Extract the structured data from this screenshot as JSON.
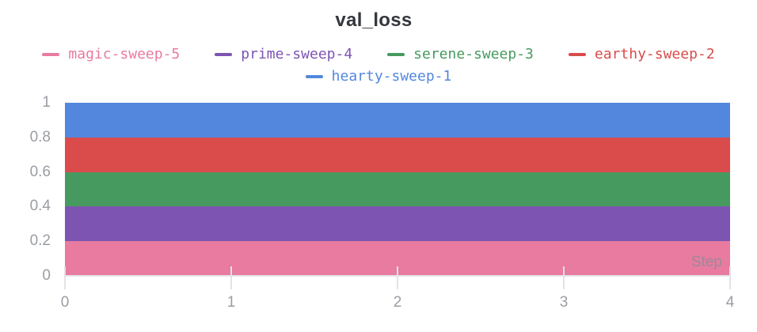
{
  "chart_data": {
    "type": "area",
    "variant": "stacked-constant-bands",
    "title": "val_loss",
    "xlabel": "Step",
    "ylabel": "",
    "xlim": [
      0,
      4
    ],
    "ylim": [
      0,
      1
    ],
    "x": [
      0,
      1,
      2,
      3,
      4
    ],
    "xticks": [
      "0",
      "1",
      "2",
      "3",
      "4"
    ],
    "yticks": [
      "0",
      "0.2",
      "0.4",
      "0.6",
      "0.8",
      "1"
    ],
    "grid": false,
    "legend_position": "top-center, wraps to second centered row",
    "series": [
      {
        "name": "magic-sweep-5",
        "color": "#E87B9F",
        "values": [
          0.2,
          0.2,
          0.2,
          0.2,
          0.2
        ],
        "stack_band": [
          0.0,
          0.2
        ]
      },
      {
        "name": "prime-sweep-4",
        "color": "#7D54B2",
        "values": [
          0.2,
          0.2,
          0.2,
          0.2,
          0.2
        ],
        "stack_band": [
          0.2,
          0.4
        ]
      },
      {
        "name": "serene-sweep-3",
        "color": "#479A5F",
        "values": [
          0.2,
          0.2,
          0.2,
          0.2,
          0.2
        ],
        "stack_band": [
          0.4,
          0.6
        ]
      },
      {
        "name": "earthy-sweep-2",
        "color": "#DA4C4C",
        "values": [
          0.2,
          0.2,
          0.2,
          0.2,
          0.2
        ],
        "stack_band": [
          0.6,
          0.8
        ]
      },
      {
        "name": "hearty-sweep-1",
        "color": "#5387DD",
        "values": [
          0.2,
          0.2,
          0.2,
          0.2,
          0.2
        ],
        "stack_band": [
          0.8,
          1.0
        ]
      }
    ]
  },
  "colors": {
    "background": "#FFFFFF",
    "title_text": "#34373C",
    "axis_label_text": "#9A9DA4",
    "tick_mark": "#E2E2E8",
    "axis_line": "#E6E6EA",
    "step_label_text": "#9A8A9A"
  }
}
